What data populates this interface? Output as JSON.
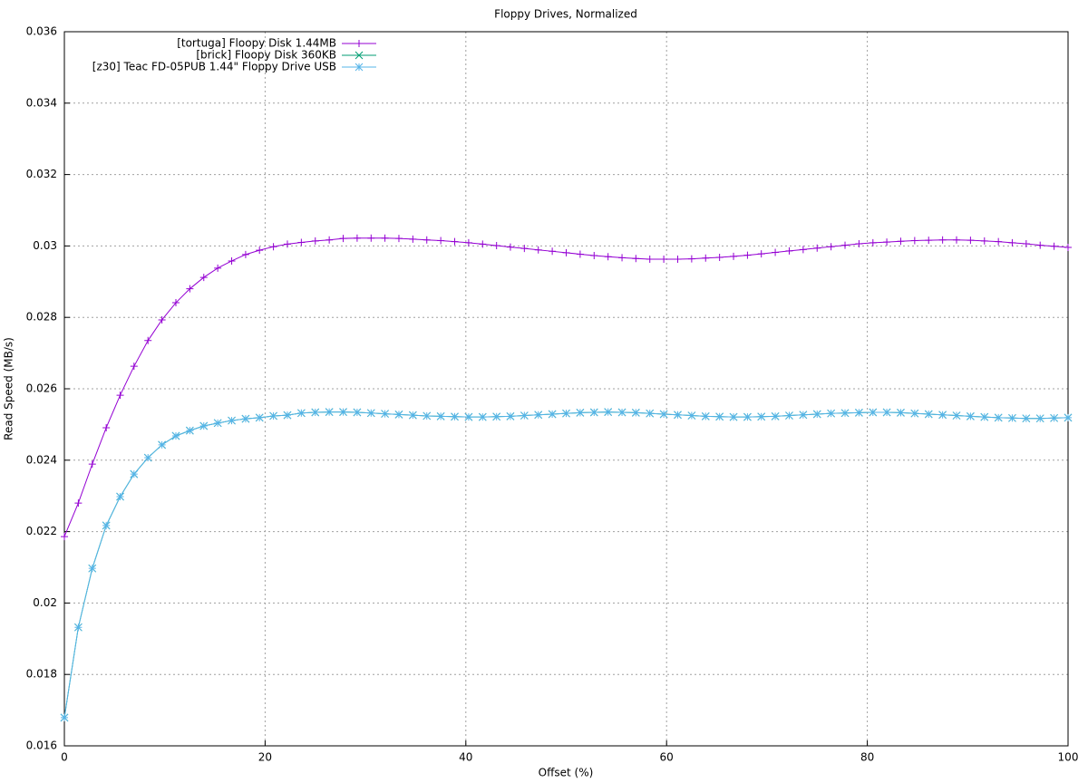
{
  "chart_data": {
    "type": "line",
    "title": "Floppy Drives, Normalized",
    "x_label": "Offset (%)",
    "y_label": "Read Speed (MB/s)",
    "xlim": [
      0,
      100
    ],
    "xticks": [
      0,
      20,
      40,
      60,
      80,
      100
    ],
    "ylim": [
      0.016,
      0.036
    ],
    "yticks": [
      0.016,
      0.018,
      0.02,
      0.022,
      0.024,
      0.026,
      0.028,
      0.03,
      0.032,
      0.034,
      0.036
    ],
    "grid": true,
    "legend_position": "top-left",
    "x": [
      0,
      1.39,
      2.78,
      4.17,
      5.56,
      6.94,
      8.33,
      9.72,
      11.11,
      12.5,
      13.89,
      15.28,
      16.67,
      18.06,
      19.44,
      20.83,
      22.22,
      23.61,
      25,
      26.39,
      27.78,
      29.17,
      30.56,
      31.94,
      33.33,
      34.72,
      36.11,
      37.5,
      38.89,
      40.28,
      41.67,
      43.06,
      44.44,
      45.83,
      47.22,
      48.61,
      50,
      51.39,
      52.78,
      54.17,
      55.56,
      56.94,
      58.33,
      59.72,
      61.11,
      62.5,
      63.89,
      65.28,
      66.67,
      68.06,
      69.44,
      70.83,
      72.22,
      73.61,
      75,
      76.39,
      77.78,
      79.17,
      80.56,
      81.94,
      83.33,
      84.72,
      86.11,
      87.5,
      88.89,
      90.28,
      91.67,
      93.06,
      94.44,
      95.83,
      97.22,
      98.61,
      100
    ],
    "series": [
      {
        "name": "[tortuga] Floopy Disk 1.44MB",
        "color": "#9400d3",
        "marker": "plus",
        "values": [
          0.02186,
          0.0228,
          0.02389,
          0.02491,
          0.02582,
          0.02663,
          0.02735,
          0.02793,
          0.02841,
          0.0288,
          0.02912,
          0.02938,
          0.02958,
          0.02976,
          0.02988,
          0.02998,
          0.03005,
          0.0301,
          0.03014,
          0.03017,
          0.03021,
          0.03022,
          0.03022,
          0.03022,
          0.03021,
          0.03019,
          0.03017,
          0.03015,
          0.03012,
          0.03009,
          0.03005,
          0.03001,
          0.02997,
          0.02993,
          0.02989,
          0.02985,
          0.02981,
          0.02977,
          0.02973,
          0.0297,
          0.02967,
          0.02965,
          0.02963,
          0.02963,
          0.02963,
          0.02964,
          0.02966,
          0.02968,
          0.02971,
          0.02974,
          0.02978,
          0.02982,
          0.02986,
          0.0299,
          0.02994,
          0.02998,
          0.03002,
          0.03006,
          0.03009,
          0.03011,
          0.03013,
          0.03015,
          0.03016,
          0.03017,
          0.03017,
          0.03016,
          0.03014,
          0.03012,
          0.03009,
          0.03006,
          0.03002,
          0.02999,
          0.02996
        ]
      },
      {
        "name": "[brick] Floopy Disk 360KB",
        "color": "#009e73",
        "marker": "cross",
        "values": [
          0.01679,
          0.01932,
          0.02097,
          0.02217,
          0.02298,
          0.02361,
          0.02407,
          0.02443,
          0.02468,
          0.02483,
          0.02496,
          0.02504,
          0.02511,
          0.02516,
          0.02519,
          0.02524,
          0.02526,
          0.02532,
          0.02534,
          0.02535,
          0.02535,
          0.02534,
          0.02532,
          0.0253,
          0.02528,
          0.02526,
          0.02524,
          0.02523,
          0.02522,
          0.02521,
          0.02521,
          0.02522,
          0.02523,
          0.02525,
          0.02527,
          0.02529,
          0.02531,
          0.02533,
          0.02534,
          0.02535,
          0.02534,
          0.02533,
          0.02531,
          0.02529,
          0.02527,
          0.02525,
          0.02523,
          0.02522,
          0.02521,
          0.02521,
          0.02522,
          0.02523,
          0.02525,
          0.02527,
          0.02529,
          0.02531,
          0.02532,
          0.02533,
          0.02534,
          0.02534,
          0.02533,
          0.02531,
          0.02529,
          0.02527,
          0.02525,
          0.02523,
          0.02521,
          0.02519,
          0.02518,
          0.02517,
          0.02517,
          0.02518,
          0.02519
        ]
      },
      {
        "name": "[z30] Teac FD-05PUB 1.44\" Floppy Drive USB",
        "color": "#56b4e9",
        "marker": "star",
        "values": [
          0.01679,
          0.01932,
          0.02097,
          0.02217,
          0.02298,
          0.02361,
          0.02407,
          0.02443,
          0.02468,
          0.02483,
          0.02496,
          0.02504,
          0.02511,
          0.02516,
          0.02519,
          0.02524,
          0.02526,
          0.02532,
          0.02534,
          0.02535,
          0.02535,
          0.02534,
          0.02532,
          0.0253,
          0.02528,
          0.02526,
          0.02524,
          0.02523,
          0.02522,
          0.02521,
          0.02521,
          0.02522,
          0.02523,
          0.02525,
          0.02527,
          0.02529,
          0.02531,
          0.02533,
          0.02534,
          0.02535,
          0.02534,
          0.02533,
          0.02531,
          0.02529,
          0.02527,
          0.02525,
          0.02523,
          0.02522,
          0.02521,
          0.02521,
          0.02522,
          0.02523,
          0.02525,
          0.02527,
          0.02529,
          0.02531,
          0.02532,
          0.02533,
          0.02534,
          0.02534,
          0.02533,
          0.02531,
          0.02529,
          0.02527,
          0.02525,
          0.02523,
          0.02521,
          0.02519,
          0.02518,
          0.02517,
          0.02517,
          0.02518,
          0.02519
        ]
      }
    ]
  }
}
